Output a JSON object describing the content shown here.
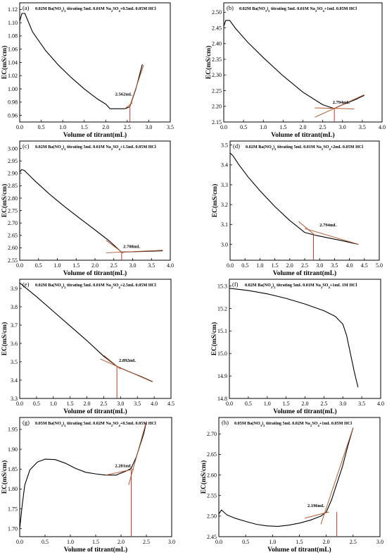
{
  "chart_data": [
    {
      "type": "line",
      "panel": "(a)",
      "title": "0.02M Ba(NO3)2 titrating 5mL 0.01M Na2SO4+0.5mL 0.05M HCl",
      "title_parts": [
        {
          "t": "0.02M Ba(NO"
        },
        {
          "t": "3",
          "sub": true
        },
        {
          "t": ")"
        },
        {
          "t": "2",
          "sub": true
        },
        {
          "t": " titrating 5mL 0.01M Na"
        },
        {
          "t": "2",
          "sub": true
        },
        {
          "t": "SO"
        },
        {
          "t": "4",
          "sub": true
        },
        {
          "t": "+0.5mL 0.05M HCl"
        }
      ],
      "xlabel": "Volume of titrant(mL)",
      "ylabel": "EC(mS/cm)",
      "xlim": [
        0,
        3.5
      ],
      "ylim": [
        0.95,
        1.13
      ],
      "xticks": [
        0,
        0.5,
        1.0,
        1.5,
        2.0,
        2.5,
        3.0,
        3.5
      ],
      "xticklabels": [
        "0.0",
        "0.5",
        "1.0",
        "1.5",
        "2.0",
        "2.5",
        "3.0",
        "3.5"
      ],
      "yticks": [
        0.96,
        0.98,
        1.0,
        1.02,
        1.04,
        1.06,
        1.08,
        1.1,
        1.12
      ],
      "yticklabels": [
        "0.96",
        "0.98",
        "1.00",
        "1.02",
        "1.04",
        "1.06",
        "1.08",
        "1.10",
        "1.12"
      ],
      "series": [
        {
          "x": [
            0,
            0.05,
            0.12,
            0.3,
            0.6,
            0.9,
            1.2,
            1.5,
            1.8,
            2.0,
            2.1,
            2.3,
            2.45,
            2.56,
            2.7,
            2.85
          ],
          "y": [
            1.102,
            1.114,
            1.114,
            1.086,
            1.058,
            1.036,
            1.017,
            1.0,
            0.985,
            0.977,
            0.97,
            0.97,
            0.97,
            0.973,
            1.0,
            1.037
          ]
        }
      ],
      "fit_lines": [
        {
          "x": [
            2.44,
            2.62
          ],
          "y": [
            0.97,
            0.979
          ]
        },
        {
          "x": [
            2.55,
            2.88
          ],
          "y": [
            0.972,
            1.036
          ]
        }
      ],
      "marker": {
        "x": 2.562,
        "label": "2.562mL",
        "y": 0.973
      },
      "label_at": {
        "x": 2.22,
        "y": 0.99
      }
    },
    {
      "type": "line",
      "panel": "(b)",
      "title": "0.02M Ba(NO3)2 titrating 5mL 0.01M Na2SO4+1mL 0.05M HCl",
      "title_parts": [
        {
          "t": "0.02M Ba(NO"
        },
        {
          "t": "3",
          "sub": true
        },
        {
          "t": ")"
        },
        {
          "t": "2",
          "sub": true
        },
        {
          "t": " titrating 5mL 0.01M Na"
        },
        {
          "t": "2",
          "sub": true
        },
        {
          "t": "SO"
        },
        {
          "t": "4",
          "sub": true
        },
        {
          "t": "+1mL 0.05M HCl"
        }
      ],
      "xlabel": "Volume of titrant(mL)",
      "ylabel": "EC(mS/cm)",
      "xlim": [
        0,
        4.0
      ],
      "ylim": [
        2.15,
        2.53
      ],
      "xticks": [
        0,
        0.5,
        1.0,
        1.5,
        2.0,
        2.5,
        3.0,
        3.5,
        4.0
      ],
      "xticklabels": [
        "0.0",
        "0.5",
        "1.0",
        "1.5",
        "2.0",
        "2.5",
        "3.0",
        "3.5",
        "4.0"
      ],
      "yticks": [
        2.15,
        2.2,
        2.25,
        2.3,
        2.35,
        2.4,
        2.45,
        2.5
      ],
      "yticklabels": [
        "2.15",
        "2.20",
        "2.25",
        "2.30",
        "2.35",
        "2.40",
        "2.45",
        "2.50"
      ],
      "series": [
        {
          "x": [
            0,
            0.05,
            0.15,
            0.3,
            0.6,
            1.0,
            1.5,
            2.0,
            2.5,
            2.79,
            3.0,
            3.3,
            3.55
          ],
          "y": [
            2.455,
            2.474,
            2.474,
            2.448,
            2.405,
            2.355,
            2.297,
            2.245,
            2.205,
            2.193,
            2.205,
            2.22,
            2.235
          ]
        }
      ],
      "fit_lines": [
        {
          "x": [
            2.3,
            3.55
          ],
          "y": [
            2.165,
            2.237
          ]
        },
        {
          "x": [
            2.3,
            3.3
          ],
          "y": [
            2.195,
            2.192
          ]
        }
      ],
      "marker": {
        "x": 2.794,
        "label": "2.794mL",
        "y": 2.193
      },
      "label_at": {
        "x": 2.75,
        "y": 2.208
      }
    },
    {
      "type": "line",
      "panel": "(c)",
      "title": "0.02M Ba(NO3)2 titrating 5mL 0.01M Na2SO4+1.5mL 0.05M HCl",
      "title_parts": [
        {
          "t": "0.02M Ba(NO"
        },
        {
          "t": "3",
          "sub": true
        },
        {
          "t": ")"
        },
        {
          "t": "2",
          "sub": true
        },
        {
          "t": " titrating 5mL 0.01M Na"
        },
        {
          "t": "2",
          "sub": true
        },
        {
          "t": "SO"
        },
        {
          "t": "4",
          "sub": true
        },
        {
          "t": "+1.5mL 0.05M HCl"
        }
      ],
      "xlabel": "Volume of titrant(mL)",
      "ylabel": "EC(mS/cm)",
      "xlim": [
        0,
        4.0
      ],
      "ylim": [
        2.55,
        3.03
      ],
      "xticks": [
        0,
        0.5,
        1.0,
        1.5,
        2.0,
        2.5,
        3.0,
        3.5,
        4.0
      ],
      "xticklabels": [
        "0.0",
        "0.5",
        "1.0",
        "1.5",
        "2.0",
        "2.5",
        "3.0",
        "3.5",
        "4.0"
      ],
      "yticks": [
        2.55,
        2.6,
        2.65,
        2.7,
        2.75,
        2.8,
        2.85,
        2.9,
        2.95,
        3.0
      ],
      "yticklabels": [
        "2.55",
        "2.60",
        "2.65",
        "2.70",
        "2.75",
        "2.80",
        "2.85",
        "2.90",
        "2.95",
        "3.00"
      ],
      "series": [
        {
          "x": [
            0,
            0.05,
            0.12,
            0.4,
            0.8,
            1.2,
            1.6,
            2.0,
            2.4,
            2.7,
            3.0,
            3.4,
            3.8
          ],
          "y": [
            2.905,
            2.915,
            2.912,
            2.87,
            2.815,
            2.765,
            2.718,
            2.672,
            2.625,
            2.583,
            2.584,
            2.586,
            2.588
          ]
        }
      ],
      "fit_lines": [
        {
          "x": [
            2.3,
            3.8
          ],
          "y": [
            2.58,
            2.59
          ]
        },
        {
          "x": [
            2.3,
            2.75
          ],
          "y": [
            2.63,
            2.578
          ]
        }
      ],
      "marker": {
        "x": 2.708,
        "label": "2.708mL",
        "y": 2.583
      },
      "label_at": {
        "x": 2.75,
        "y": 2.6
      }
    },
    {
      "type": "line",
      "panel": "(d)",
      "title": "0.02M Ba(NO3)2 titrating 5mL 0.01M Na2SO4+2mL 0.05M HCl",
      "title_parts": [
        {
          "t": "0.02M Ba(NO"
        },
        {
          "t": "3",
          "sub": true
        },
        {
          "t": ")"
        },
        {
          "t": "2",
          "sub": true
        },
        {
          "t": " titrating 5mL 0.01M Na"
        },
        {
          "t": "2",
          "sub": true
        },
        {
          "t": "SO"
        },
        {
          "t": "4",
          "sub": true
        },
        {
          "t": "+2mL 0.05M HCl"
        }
      ],
      "xlabel": "Volume of titrant(mL)",
      "ylabel": "EC(mS/cm)",
      "xlim": [
        0,
        5.0
      ],
      "ylim": [
        2.92,
        3.52
      ],
      "xticks": [
        0,
        0.5,
        1.0,
        1.5,
        2.0,
        2.5,
        3.0,
        3.5,
        4.0,
        4.5,
        5.0
      ],
      "xticklabels": [
        "0.0",
        "0.5",
        "1.0",
        "1.5",
        "2.0",
        "2.5",
        "3.0",
        "3.5",
        "4.0",
        "4.5",
        "5.0"
      ],
      "yticks": [
        3.0,
        3.1,
        3.2,
        3.3,
        3.4,
        3.5
      ],
      "yticklabels": [
        "3.0",
        "3.1",
        "3.2",
        "3.3",
        "3.4",
        "3.5"
      ],
      "series": [
        {
          "x": [
            0,
            0.1,
            0.3,
            0.6,
            1.0,
            1.5,
            2.0,
            2.5,
            2.79,
            3.2,
            3.7,
            4.3
          ],
          "y": [
            3.46,
            3.445,
            3.4,
            3.34,
            3.27,
            3.19,
            3.12,
            3.06,
            3.048,
            3.035,
            3.02,
            3.0
          ]
        }
      ],
      "fit_lines": [
        {
          "x": [
            2.5,
            4.3
          ],
          "y": [
            3.08,
            3.0
          ]
        },
        {
          "x": [
            2.3,
            2.85
          ],
          "y": [
            3.115,
            3.045
          ]
        }
      ],
      "marker": {
        "x": 2.794,
        "label": "2.794mL",
        "y": 3.05
      },
      "label_at": {
        "x": 3.0,
        "y": 3.09
      }
    },
    {
      "type": "line",
      "panel": "(e)",
      "title": "0.02M Ba(NO3)2 titrating 5mL 0.01M Na2SO4+2.5mL 0.05M HCl",
      "title_parts": [
        {
          "t": "0.02M Ba(NO"
        },
        {
          "t": "3",
          "sub": true
        },
        {
          "t": ")"
        },
        {
          "t": "2",
          "sub": true
        },
        {
          "t": " titrating 5mL 0.01M Na"
        },
        {
          "t": "2",
          "sub": true
        },
        {
          "t": "SO"
        },
        {
          "t": "4",
          "sub": true
        },
        {
          "t": "+2.5mL 0.05M HCl"
        }
      ],
      "xlabel": "Volume of titrant(mL)",
      "ylabel": "EC(mS/cm)",
      "xlim": [
        0,
        4.5
      ],
      "ylim": [
        3.3,
        3.95
      ],
      "xticks": [
        0,
        0.5,
        1.0,
        1.5,
        2.0,
        2.5,
        3.0,
        3.5,
        4.0,
        4.5
      ],
      "xticklabels": [
        "0.0",
        "0.5",
        "1.0",
        "1.5",
        "2.0",
        "2.5",
        "3.0",
        "3.5",
        "4.0",
        "4.5"
      ],
      "yticks": [
        3.3,
        3.4,
        3.5,
        3.6,
        3.7,
        3.8,
        3.9
      ],
      "yticklabels": [
        "3.3",
        "3.4",
        "3.5",
        "3.6",
        "3.7",
        "3.8",
        "3.9"
      ],
      "series": [
        {
          "x": [
            0,
            0.5,
            1.0,
            1.5,
            2.0,
            2.5,
            2.89,
            3.2,
            3.6,
            3.95
          ],
          "y": [
            3.93,
            3.855,
            3.775,
            3.695,
            3.615,
            3.53,
            3.475,
            3.45,
            3.42,
            3.392
          ]
        }
      ],
      "fit_lines": [
        {
          "x": [
            2.4,
            3.95
          ],
          "y": [
            3.515,
            3.39
          ]
        },
        {
          "x": [
            2.5,
            3.0
          ],
          "y": [
            3.535,
            3.46
          ]
        }
      ],
      "marker": {
        "x": 2.892,
        "label": "2.892mL",
        "y": 3.478
      },
      "label_at": {
        "x": 2.95,
        "y": 3.5
      }
    },
    {
      "type": "line",
      "panel": "(f)",
      "title": "0.02M Ba(NO3)2 titrating 5mL 0.01M Na2SO4+1mL 1M HCl",
      "title_parts": [
        {
          "t": "0.02M Ba(NO"
        },
        {
          "t": "3",
          "sub": true
        },
        {
          "t": ")"
        },
        {
          "t": "2",
          "sub": true
        },
        {
          "t": " titrating 5mL 0.01M Na"
        },
        {
          "t": "2",
          "sub": true
        },
        {
          "t": "SO"
        },
        {
          "t": "4",
          "sub": true
        },
        {
          "t": "+1mL 1M HCl"
        }
      ],
      "xlabel": "Volume of titrant(mL)",
      "ylabel": "EC(mS/cm)",
      "xlim": [
        0,
        4.0
      ],
      "ylim": [
        14.8,
        15.33
      ],
      "xticks": [
        0,
        0.5,
        1.0,
        1.5,
        2.0,
        2.5,
        3.0,
        3.5,
        4.0
      ],
      "xticklabels": [
        "0.0",
        "0.5",
        "1.0",
        "1.5",
        "2.0",
        "2.5",
        "3.0",
        "3.5",
        "4.0"
      ],
      "yticks": [
        14.8,
        14.9,
        15.0,
        15.1,
        15.2,
        15.3
      ],
      "yticklabels": [
        "14.8",
        "14.9",
        "15.0",
        "15.1",
        "15.2",
        "15.3"
      ],
      "series": [
        {
          "x": [
            0,
            0.5,
            1.0,
            1.5,
            2.0,
            2.5,
            2.8,
            3.0,
            3.1,
            3.2,
            3.3,
            3.4
          ],
          "y": [
            15.29,
            15.28,
            15.265,
            15.245,
            15.22,
            15.19,
            15.165,
            15.13,
            15.08,
            15.0,
            14.92,
            14.85
          ]
        }
      ],
      "fit_lines": [],
      "marker": null,
      "label_at": null
    },
    {
      "type": "line",
      "panel": "(g)",
      "title": "0.05M Ba(NO3)2 titrating 5mL 0.02M Na2SO4+0.5mL 0.05M HCl",
      "title_parts": [
        {
          "t": "0.05M Ba(NO"
        },
        {
          "t": "3",
          "sub": true
        },
        {
          "t": ")"
        },
        {
          "t": "2",
          "sub": true
        },
        {
          "t": " titrating 5mL 0.02M Na"
        },
        {
          "t": "2",
          "sub": true
        },
        {
          "t": "SO"
        },
        {
          "t": "4",
          "sub": true
        },
        {
          "t": "+0.5mL 0.05M HCl"
        }
      ],
      "xlabel": "Volume of titrant(mL)",
      "ylabel": "EC(mS/cm)",
      "xlim": [
        0,
        3.0
      ],
      "ylim": [
        1.68,
        1.98
      ],
      "xticks": [
        0,
        0.5,
        1.0,
        1.5,
        2.0,
        2.5,
        3.0
      ],
      "xticklabels": [
        "0.0",
        "0.5",
        "1.0",
        "1.5",
        "2.0",
        "2.5",
        "3.0"
      ],
      "yticks": [
        1.7,
        1.75,
        1.8,
        1.85,
        1.9,
        1.95
      ],
      "yticklabels": [
        "1.70",
        "1.75",
        "1.80",
        "1.85",
        "1.90",
        "1.95"
      ],
      "series": [
        {
          "x": [
            0,
            0.05,
            0.1,
            0.2,
            0.35,
            0.5,
            0.7,
            0.9,
            1.1,
            1.3,
            1.5,
            1.7,
            1.9,
            2.1,
            2.2,
            2.3,
            2.45,
            2.5
          ],
          "y": [
            1.7,
            1.76,
            1.81,
            1.848,
            1.868,
            1.875,
            1.874,
            1.865,
            1.852,
            1.842,
            1.838,
            1.835,
            1.835,
            1.845,
            1.852,
            1.88,
            1.94,
            1.97
          ]
        }
      ],
      "fit_lines": [
        {
          "x": [
            2.15,
            2.5
          ],
          "y": [
            1.81,
            1.97
          ]
        },
        {
          "x": [
            1.7,
            2.25
          ],
          "y": [
            1.835,
            1.85
          ]
        }
      ],
      "marker": {
        "x": 2.201,
        "label": "2.201mL",
        "y": 1.847
      },
      "label_at": {
        "x": 1.88,
        "y": 1.855
      }
    },
    {
      "type": "line",
      "panel": "(h)",
      "title": "0.05M Ba(NO3)2 titrating 5mL 0.02M Na2SO4+1mL 0.05M HCl",
      "title_parts": [
        {
          "t": "0.05M Ba(NO"
        },
        {
          "t": "3",
          "sub": true
        },
        {
          "t": ")"
        },
        {
          "t": "2",
          "sub": true
        },
        {
          "t": " titrating 5mL 0.02M Na"
        },
        {
          "t": "2",
          "sub": true
        },
        {
          "t": "SO"
        },
        {
          "t": "4",
          "sub": true
        },
        {
          "t": "+1mL 0.05M HCl"
        }
      ],
      "xlabel": "Volume of titrant(mL)",
      "ylabel": "EC(mS/cm)",
      "xlim": [
        0,
        3.0
      ],
      "ylim": [
        2.45,
        2.74
      ],
      "xticks": [
        0,
        0.5,
        1.0,
        1.5,
        2.0,
        2.5,
        3.0
      ],
      "xticklabels": [
        "0.0",
        "0.5",
        "1.0",
        "1.5",
        "2.0",
        "2.5",
        "3.0"
      ],
      "yticks": [
        2.45,
        2.5,
        2.55,
        2.6,
        2.65,
        2.7
      ],
      "yticklabels": [
        "2.45",
        "2.50",
        "2.55",
        "2.60",
        "2.65",
        "2.70"
      ],
      "series": [
        {
          "x": [
            0,
            0.05,
            0.15,
            0.3,
            0.5,
            0.7,
            0.9,
            1.1,
            1.3,
            1.5,
            1.7,
            1.9,
            2.0,
            2.1,
            2.2,
            2.3,
            2.4,
            2.5
          ],
          "y": [
            2.505,
            2.515,
            2.503,
            2.495,
            2.487,
            2.48,
            2.476,
            2.475,
            2.478,
            2.483,
            2.49,
            2.5,
            2.51,
            2.54,
            2.58,
            2.62,
            2.67,
            2.715
          ]
        }
      ],
      "fit_lines": [
        {
          "x": [
            1.9,
            2.5
          ],
          "y": [
            2.48,
            2.715
          ]
        },
        {
          "x": [
            1.6,
            2.05
          ],
          "y": [
            2.495,
            2.51
          ]
        }
      ],
      "marker": {
        "x": 2.196,
        "label": "2.196mL",
        "y": 2.51
      },
      "label_at": {
        "x": 1.65,
        "y": 2.522
      }
    }
  ]
}
